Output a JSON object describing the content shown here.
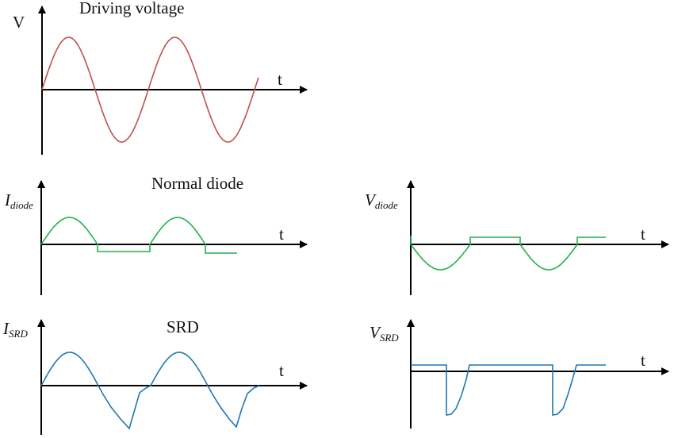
{
  "panels": {
    "drive": {
      "title": "Driving voltage",
      "y_label": "V",
      "x_label": "t",
      "color": "#c0504d",
      "waveform": "sine, two periods"
    },
    "normal_current": {
      "title": "Normal diode",
      "y_label_main": "I",
      "y_label_sub": "diode",
      "x_label": "t",
      "color": "#22b14c",
      "waveform": "half-wave positive lobes with small constant negative current between"
    },
    "normal_voltage": {
      "y_label_main": "V",
      "y_label_sub": "diode",
      "x_label": "t",
      "color": "#22b14c",
      "waveform": "negative half-wave lobes with small constant positive voltage between"
    },
    "srd_current": {
      "title": "SRD",
      "y_label_main": "I",
      "y_label_sub": "SRD",
      "x_label": "t",
      "color": "#1f77b4",
      "waveform": "positive lobes, negative reverse-recovery ramp then abrupt snap back"
    },
    "srd_voltage": {
      "y_label_main": "V",
      "y_label_sub": "SRD",
      "x_label": "t",
      "color": "#1f77b4",
      "waveform": "constant small positive level with sharp negative pulses"
    }
  }
}
